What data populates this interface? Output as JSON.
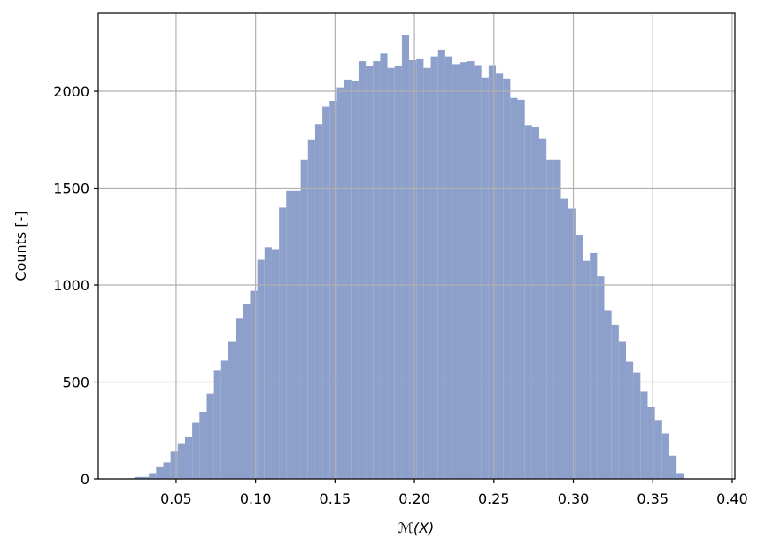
{
  "chart_data": {
    "type": "histogram",
    "xlabel": "ℳ(X)",
    "ylabel": "Counts [-]",
    "color": "#8da0cb",
    "grid": true,
    "bins": [
      0.0192,
      0.02375,
      0.0283,
      0.03285,
      0.0374,
      0.04195,
      0.0465,
      0.05105,
      0.0556,
      0.06015,
      0.0647,
      0.06925,
      0.0738,
      0.07835,
      0.0829,
      0.08745,
      0.092,
      0.09655,
      0.1011,
      0.10565,
      0.1102,
      0.11475,
      0.1193,
      0.12385,
      0.1284,
      0.13295,
      0.1375,
      0.14205,
      0.1466,
      0.15115,
      0.1557,
      0.16025,
      0.1648,
      0.16935,
      0.1739,
      0.17845,
      0.183,
      0.18755,
      0.1921,
      0.19665,
      0.2012,
      0.20575,
      0.2103,
      0.21485,
      0.2194,
      0.22395,
      0.2285,
      0.23305,
      0.2376,
      0.24215,
      0.2467,
      0.25125,
      0.2558,
      0.26035,
      0.2649,
      0.26945,
      0.274,
      0.27855,
      0.2831,
      0.28765,
      0.2922,
      0.29675,
      0.3013,
      0.30585,
      0.3104,
      0.31495,
      0.3195,
      0.32405,
      0.3286,
      0.33315,
      0.3377,
      0.34225,
      0.3468,
      0.35135,
      0.3559,
      0.36045,
      0.365,
      0.36955,
      0.3741,
      0.37865,
      0.3832
    ],
    "values": [
      3,
      10,
      10,
      30,
      60,
      85,
      140,
      180,
      215,
      290,
      345,
      440,
      560,
      610,
      710,
      830,
      900,
      970,
      1130,
      1195,
      1185,
      1400,
      1485,
      1485,
      1645,
      1750,
      1830,
      1920,
      1950,
      2020,
      2060,
      2055,
      2155,
      2130,
      2155,
      2195,
      2120,
      2130,
      2290,
      2160,
      2165,
      2120,
      2180,
      2215,
      2180,
      2140,
      2150,
      2155,
      2135,
      2070,
      2135,
      2090,
      2065,
      1965,
      1955,
      1825,
      1815,
      1755,
      1645,
      1645,
      1445,
      1395,
      1260,
      1125,
      1165,
      1045,
      870,
      795,
      710,
      605,
      550,
      450,
      370,
      300,
      235,
      120,
      30,
      0,
      0,
      1
    ],
    "xlim": [
      0.001,
      0.4017
    ],
    "xticks": [
      0.05,
      {
        "value": 0.1,
        "label": "0.10"
      },
      0.15,
      {
        "value": 0.2,
        "label": "0.20"
      },
      0.25,
      {
        "value": 0.3,
        "label": "0.30"
      },
      0.35,
      {
        "value": 0.4,
        "label": "0.40"
      }
    ],
    "ylim": [
      0,
      2402
    ],
    "yticks": [
      0,
      500,
      1000,
      1500,
      2000
    ]
  }
}
